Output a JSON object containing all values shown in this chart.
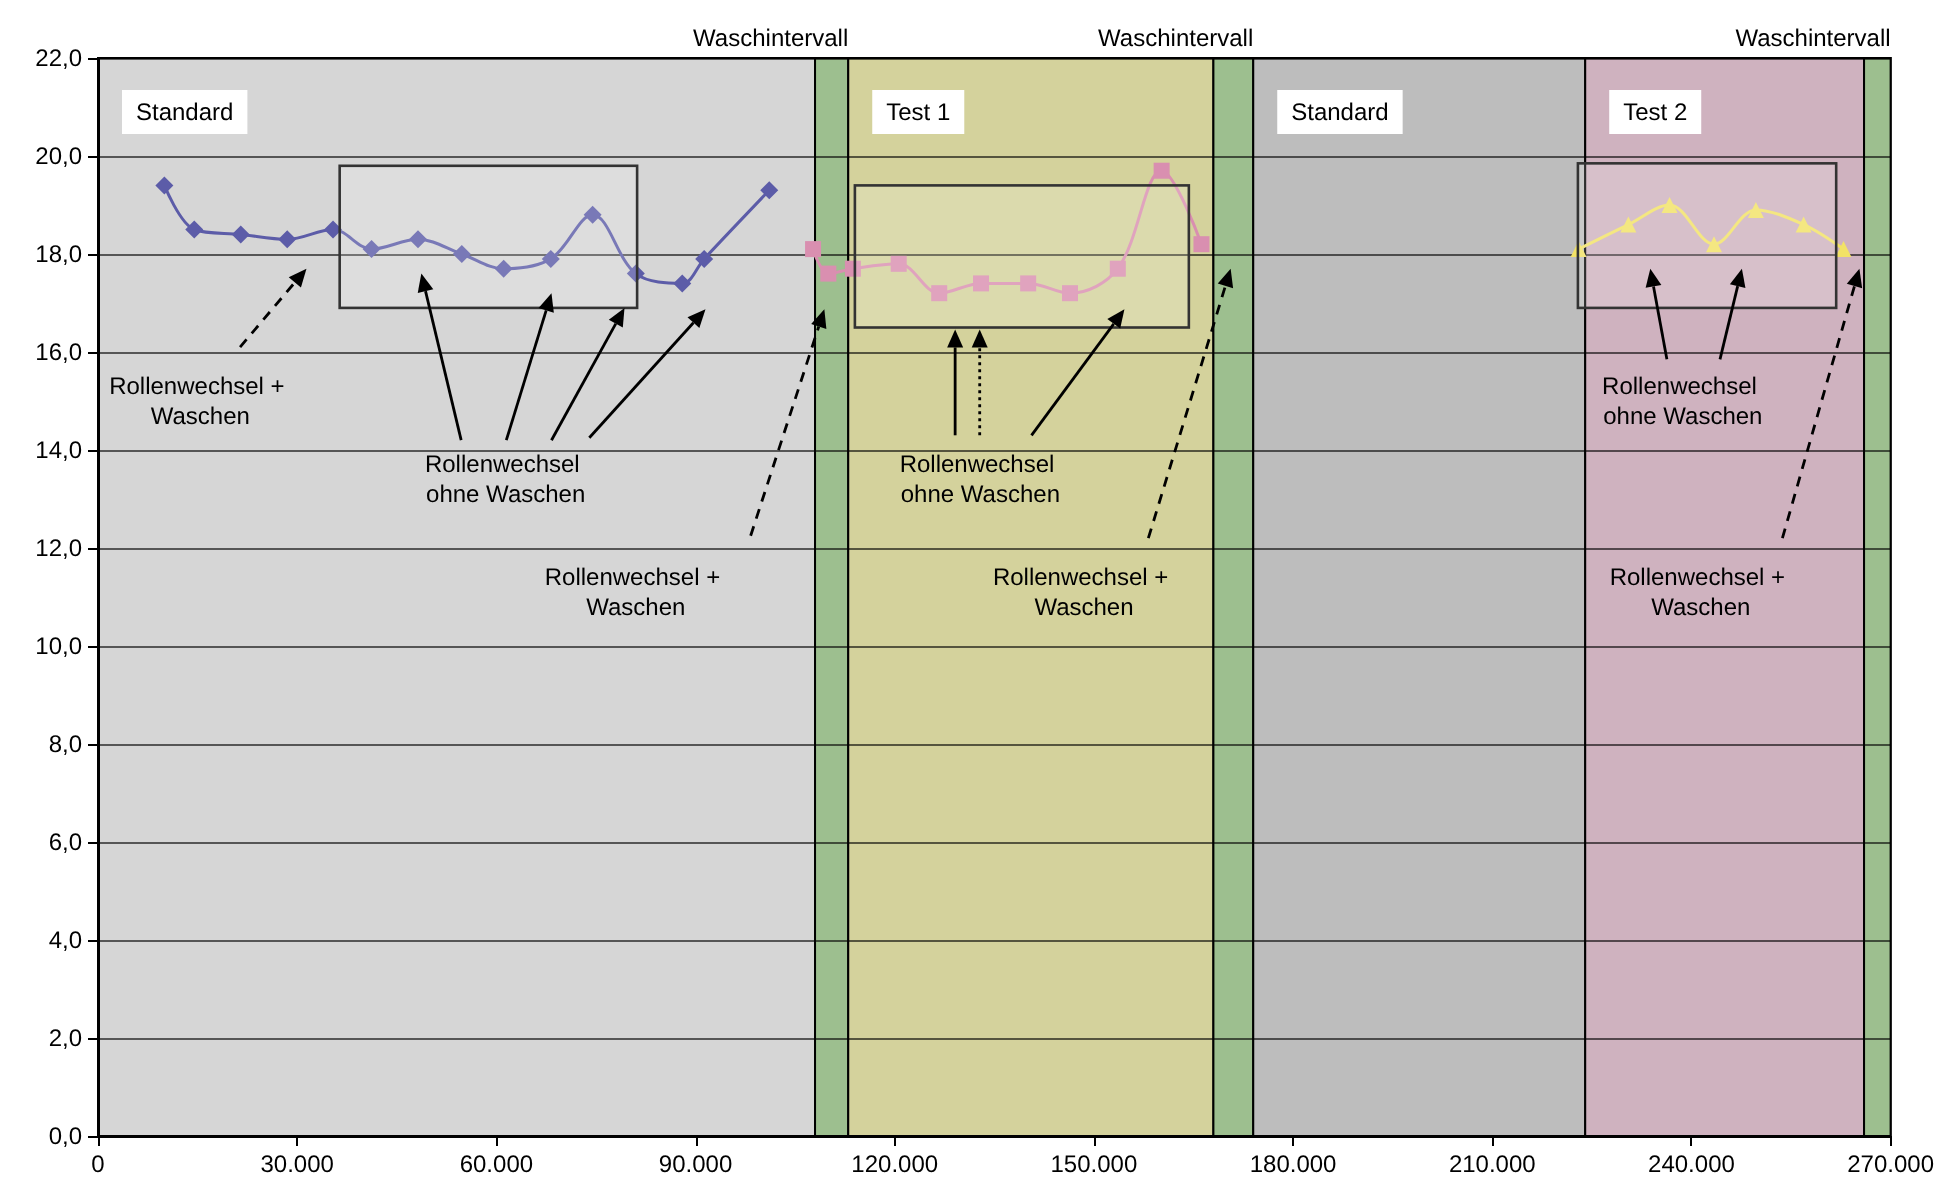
{
  "chart_data": {
    "type": "line",
    "x": [
      10000,
      14500,
      21500,
      28500,
      35400,
      41200,
      48200,
      54800,
      61100,
      68200,
      74500,
      81000,
      88000,
      91300,
      101100
    ],
    "series": [
      {
        "color": "#5c5ca8",
        "marker": "diamond",
        "values": [
          19.4,
          18.5,
          18.4,
          18.3,
          18.5,
          18.1,
          18.3,
          18.0,
          17.7,
          17.9,
          18.8,
          17.6,
          17.4,
          17.9,
          19.3
        ]
      },
      {
        "color": "#d98fb0",
        "marker": "square",
        "x": [
          107700,
          110000,
          113700,
          120600,
          126700,
          133000,
          140100,
          146400,
          153600,
          160200,
          166200
        ],
        "values": [
          18.1,
          17.6,
          17.7,
          17.8,
          17.2,
          17.4,
          17.4,
          17.2,
          17.7,
          19.7,
          18.2
        ]
      },
      {
        "color": "#f2e266",
        "marker": "triangle",
        "x": [
          223000,
          230500,
          236700,
          243400,
          249700,
          256900,
          262900
        ],
        "values": [
          18.1,
          18.6,
          19.0,
          18.2,
          18.9,
          18.6,
          18.1
        ]
      }
    ],
    "xlim": [
      0,
      270000
    ],
    "xticks": [
      {
        "value": 0,
        "label": "0"
      },
      {
        "value": 30000,
        "label": "30.000"
      },
      {
        "value": 60000,
        "label": "60.000"
      },
      {
        "value": 90000,
        "label": "90.000"
      },
      {
        "value": 120000,
        "label": "120.000"
      },
      {
        "value": 150000,
        "label": "150.000"
      },
      {
        "value": 180000,
        "label": "180.000"
      },
      {
        "value": 210000,
        "label": "210.000"
      },
      {
        "value": 240000,
        "label": "240.000"
      },
      {
        "value": 270000,
        "label": "270.000"
      }
    ],
    "ylim": [
      0,
      22
    ],
    "yticks": [
      {
        "value": 0,
        "label": "0,0"
      },
      {
        "value": 2,
        "label": "2,0"
      },
      {
        "value": 4,
        "label": "4,0"
      },
      {
        "value": 6,
        "label": "6,0"
      },
      {
        "value": 8,
        "label": "8,0"
      },
      {
        "value": 10,
        "label": "10,0"
      },
      {
        "value": 12,
        "label": "12,0"
      },
      {
        "value": 14,
        "label": "14,0"
      },
      {
        "value": 16,
        "label": "16,0"
      },
      {
        "value": 18,
        "label": "18,0"
      },
      {
        "value": 20,
        "label": "20,0"
      },
      {
        "value": 22,
        "label": "22,0"
      }
    ],
    "grid": "y",
    "bands": [
      {
        "axis": "x",
        "from": 0,
        "to": 108000,
        "label": "Standard",
        "color": "#d6d6d6"
      },
      {
        "axis": "x",
        "from": 108000,
        "to": 113000,
        "label": "Waschintervall",
        "color": "#9dbf8f"
      },
      {
        "axis": "x",
        "from": 113000,
        "to": 168000,
        "label": "Test 1",
        "color": "#d4d29c"
      },
      {
        "axis": "x",
        "from": 168000,
        "to": 174000,
        "label": "Waschintervall",
        "color": "#9dbf8f"
      },
      {
        "axis": "x",
        "from": 174000,
        "to": 224000,
        "label": "Standard",
        "color": "#bdbdbd"
      },
      {
        "axis": "x",
        "from": 224000,
        "to": 266000,
        "label": "Test 2",
        "color": "#cfb2bf"
      },
      {
        "axis": "x",
        "from": 266000,
        "to": 270000,
        "label": "Waschintervall",
        "color": "#9dbf8f"
      }
    ],
    "annotations": [
      "Rollenwechsel + Waschen",
      "Rollenwechsel ohne Waschen",
      "Rollenwechsel + Waschen",
      "Rollenwechsel ohne Waschen",
      "Rollenwechsel + Waschen",
      "Rollenwechsel ohne Waschen",
      "Rollenwechsel + Waschen"
    ]
  }
}
